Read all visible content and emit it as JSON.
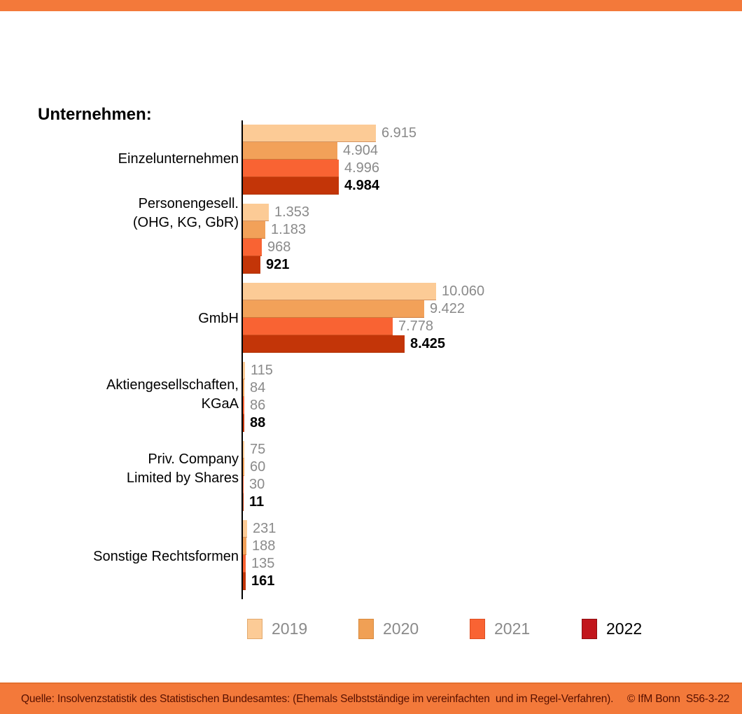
{
  "title": "Unternehmen:",
  "colors": {
    "band_orange": "#F3793A",
    "axis_black": "#000000",
    "footer_text": "#571000",
    "muted_label_gray": "#8A8A8A"
  },
  "chart_data": {
    "type": "bar",
    "orientation": "horizontal",
    "title": "Unternehmen:",
    "value_format": "thousands-dot",
    "x_axis_visible": false,
    "grid": false,
    "categories": [
      {
        "lines": [
          "Einzelunternehmen"
        ]
      },
      {
        "lines": [
          "Personengesell.",
          "(OHG, KG, GbR)"
        ]
      },
      {
        "lines": [
          "GmbH"
        ]
      },
      {
        "lines": [
          "Aktiengesellschaften,",
          "KGaA"
        ]
      },
      {
        "lines": [
          "Priv. Company",
          "Limited by Shares"
        ]
      },
      {
        "lines": [
          "Sonstige Rechtsformen"
        ]
      }
    ],
    "series": [
      {
        "name": "2019",
        "color": "#FCCB96",
        "label_color": "#8A8A8A",
        "label_bold": false,
        "values": [
          6915,
          1353,
          10060,
          115,
          75,
          231
        ],
        "value_labels": [
          "6.915",
          "1.353",
          "10.060",
          "115",
          "75",
          "231"
        ]
      },
      {
        "name": "2020",
        "color": "#F2A159",
        "label_color": "#8A8A8A",
        "label_bold": false,
        "values": [
          4904,
          1183,
          9422,
          84,
          60,
          188
        ],
        "value_labels": [
          "4.904",
          "1.183",
          "9.422",
          "84",
          "60",
          "188"
        ]
      },
      {
        "name": "2021",
        "color": "#F96333",
        "label_color": "#8A8A8A",
        "label_bold": false,
        "values": [
          4996,
          968,
          7778,
          86,
          30,
          135
        ],
        "value_labels": [
          "4.996",
          "968",
          "7.778",
          "86",
          "30",
          "135"
        ]
      },
      {
        "name": "2022",
        "color": "#C33508",
        "label_color": "#000000",
        "label_bold": true,
        "values": [
          4984,
          921,
          8425,
          88,
          11,
          161
        ],
        "value_labels": [
          "4.984",
          "921",
          "8.425",
          "88",
          "11",
          "161"
        ]
      }
    ],
    "legend": {
      "position": "bottom",
      "entries": [
        {
          "label": "2019",
          "swatch_color": "#FCCB96",
          "swatch_border": "#E2A96E",
          "text_color": "#8A8A8A"
        },
        {
          "label": "2020",
          "swatch_color": "#F0A055",
          "swatch_border": "#D8893C",
          "text_color": "#8A8A8A"
        },
        {
          "label": "2021",
          "swatch_color": "#F96333",
          "swatch_border": "#DD4E22",
          "text_color": "#8A8A8A"
        },
        {
          "label": "2022",
          "swatch_color": "#C2161C",
          "swatch_border": "#8E0E12",
          "text_color": "#000000"
        }
      ]
    }
  },
  "footer": {
    "source": "Quelle: Insolvenzstatistik des Statistischen Bundesamtes: (Ehemals Selbstständige im vereinfachten  und im Regel-Verfahren).",
    "credit": "© IfM Bonn  S56-3-22"
  }
}
